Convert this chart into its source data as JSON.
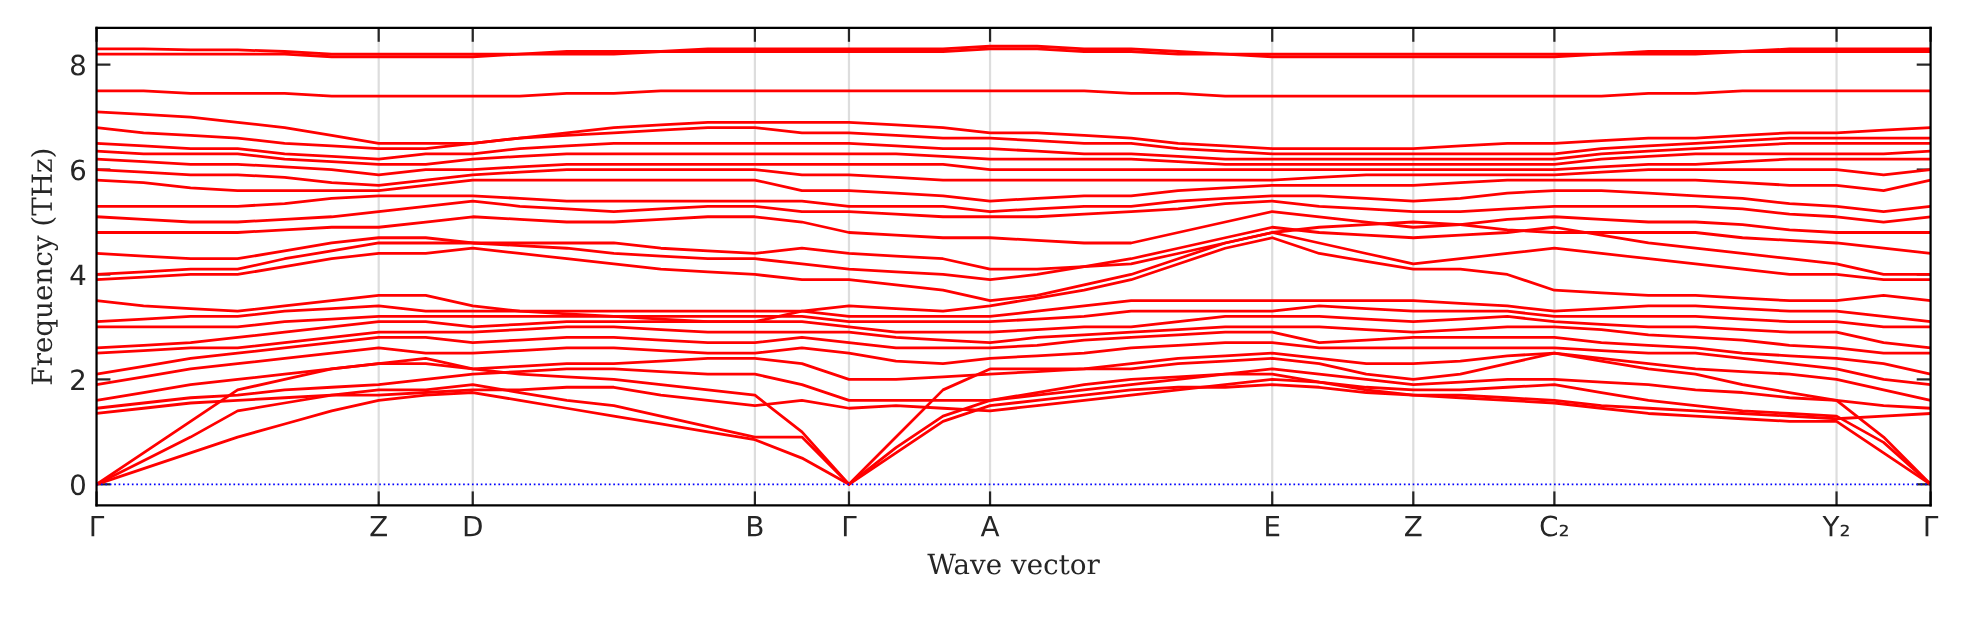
{
  "chart_data": {
    "type": "line",
    "xlabel": "Wave vector",
    "ylabel": "Frequency (THz)",
    "categories": [
      "Γ",
      null,
      null,
      null,
      null,
      null,
      "Z",
      null,
      "D",
      null,
      null,
      null,
      null,
      null,
      "B",
      null,
      "Γ",
      null,
      null,
      "A",
      null,
      null,
      null,
      null,
      null,
      "E",
      null,
      null,
      "Z",
      null,
      null,
      "C₂",
      null,
      null,
      null,
      null,
      null,
      "Y₂",
      null,
      "Γ"
    ],
    "ylim": [
      -0.4,
      8.7
    ],
    "yticks": [
      0,
      2,
      4,
      6,
      8
    ],
    "grid": "x",
    "marker": "none",
    "line_style": "solid",
    "ref_lines": [
      {
        "axis": "y",
        "value": 0,
        "color": "#0000ff",
        "line_style": "dotted"
      }
    ],
    "series": [
      {
        "color": "#ff0000",
        "values": [
          0,
          0.3,
          0.6,
          0.9,
          1.15,
          1.4,
          1.6,
          1.7,
          1.75,
          1.6,
          1.45,
          1.3,
          1.15,
          1.0,
          0.85,
          0.5,
          0,
          0.6,
          1.2,
          1.5,
          1.6,
          1.7,
          1.8,
          1.85,
          1.85,
          1.9,
          1.85,
          1.75,
          1.7,
          1.65,
          1.6,
          1.55,
          1.45,
          1.35,
          1.3,
          1.25,
          1.2,
          1.2,
          0.6,
          0
        ]
      },
      {
        "color": "#ff0000",
        "values": [
          0,
          0.45,
          0.9,
          1.4,
          1.55,
          1.7,
          1.8,
          1.8,
          1.9,
          1.75,
          1.6,
          1.5,
          1.3,
          1.1,
          0.9,
          0.9,
          0,
          0.7,
          1.3,
          1.6,
          1.75,
          1.9,
          2.0,
          2.05,
          2.1,
          2.1,
          1.95,
          1.85,
          1.8,
          1.8,
          1.85,
          1.9,
          1.75,
          1.6,
          1.5,
          1.4,
          1.35,
          1.3,
          0.8,
          0
        ]
      },
      {
        "color": "#ff0000",
        "values": [
          0,
          0.6,
          1.2,
          1.8,
          2.0,
          2.2,
          2.3,
          2.4,
          2.2,
          2.1,
          2.05,
          2.0,
          1.9,
          1.8,
          1.7,
          1.0,
          0,
          0.9,
          1.8,
          2.2,
          2.2,
          2.2,
          2.2,
          2.3,
          2.35,
          2.4,
          2.3,
          2.1,
          2.0,
          2.1,
          2.3,
          2.5,
          2.35,
          2.2,
          2.1,
          1.9,
          1.75,
          1.6,
          0.9,
          0
        ]
      },
      {
        "color": "#ff0000",
        "values": [
          1.35,
          1.45,
          1.55,
          1.6,
          1.65,
          1.7,
          1.7,
          1.75,
          1.8,
          1.8,
          1.85,
          1.85,
          1.7,
          1.6,
          1.5,
          1.6,
          1.45,
          1.5,
          1.45,
          1.4,
          1.5,
          1.6,
          1.7,
          1.8,
          1.9,
          2.0,
          1.95,
          1.8,
          1.7,
          1.7,
          1.65,
          1.6,
          1.5,
          1.45,
          1.4,
          1.35,
          1.3,
          1.25,
          1.3,
          1.35
        ]
      },
      {
        "color": "#ff0000",
        "values": [
          1.45,
          1.55,
          1.65,
          1.7,
          1.8,
          1.85,
          1.9,
          2.0,
          2.1,
          2.15,
          2.2,
          2.2,
          2.15,
          2.1,
          2.1,
          1.9,
          1.6,
          1.6,
          1.6,
          1.6,
          1.7,
          1.8,
          1.9,
          2.0,
          2.1,
          2.2,
          2.1,
          2.0,
          1.9,
          1.95,
          2.0,
          2.0,
          1.95,
          1.9,
          1.8,
          1.75,
          1.65,
          1.6,
          1.5,
          1.45
        ]
      },
      {
        "color": "#ff0000",
        "values": [
          1.6,
          1.75,
          1.9,
          2.0,
          2.1,
          2.2,
          2.3,
          2.3,
          2.2,
          2.25,
          2.3,
          2.3,
          2.35,
          2.4,
          2.4,
          2.3,
          2.0,
          2.0,
          2.05,
          2.1,
          2.15,
          2.2,
          2.3,
          2.4,
          2.45,
          2.5,
          2.4,
          2.3,
          2.3,
          2.35,
          2.45,
          2.5,
          2.4,
          2.3,
          2.2,
          2.15,
          2.1,
          2.0,
          1.8,
          1.6
        ]
      },
      {
        "color": "#ff0000",
        "values": [
          1.9,
          2.05,
          2.2,
          2.3,
          2.4,
          2.5,
          2.6,
          2.5,
          2.5,
          2.55,
          2.6,
          2.6,
          2.55,
          2.5,
          2.5,
          2.6,
          2.5,
          2.35,
          2.3,
          2.4,
          2.45,
          2.5,
          2.6,
          2.65,
          2.7,
          2.7,
          2.6,
          2.6,
          2.6,
          2.6,
          2.6,
          2.6,
          2.55,
          2.5,
          2.5,
          2.4,
          2.3,
          2.2,
          2.0,
          1.9
        ]
      },
      {
        "color": "#ff0000",
        "values": [
          2.1,
          2.25,
          2.4,
          2.5,
          2.6,
          2.7,
          2.8,
          2.8,
          2.7,
          2.75,
          2.8,
          2.8,
          2.75,
          2.7,
          2.7,
          2.8,
          2.7,
          2.6,
          2.6,
          2.6,
          2.65,
          2.75,
          2.8,
          2.85,
          2.9,
          2.9,
          2.7,
          2.75,
          2.8,
          2.8,
          2.8,
          2.8,
          2.7,
          2.65,
          2.6,
          2.5,
          2.45,
          2.4,
          2.3,
          2.1
        ]
      },
      {
        "color": "#ff0000",
        "values": [
          2.5,
          2.55,
          2.6,
          2.6,
          2.7,
          2.8,
          2.9,
          2.9,
          2.9,
          2.95,
          3.0,
          3.0,
          2.95,
          2.9,
          2.9,
          2.9,
          2.9,
          2.8,
          2.75,
          2.7,
          2.8,
          2.85,
          2.9,
          2.95,
          3.0,
          3.0,
          3.0,
          2.95,
          2.9,
          2.95,
          3.0,
          3.0,
          2.95,
          2.85,
          2.8,
          2.75,
          2.65,
          2.6,
          2.5,
          2.5
        ]
      },
      {
        "color": "#ff0000",
        "values": [
          2.6,
          2.65,
          2.7,
          2.8,
          2.9,
          3.0,
          3.1,
          3.1,
          3.0,
          3.05,
          3.1,
          3.1,
          3.1,
          3.1,
          3.1,
          3.1,
          3.0,
          2.9,
          2.9,
          2.9,
          2.95,
          3.0,
          3.0,
          3.1,
          3.2,
          3.2,
          3.2,
          3.15,
          3.1,
          3.15,
          3.2,
          3.1,
          3.05,
          3.0,
          3.0,
          2.95,
          2.9,
          2.9,
          2.7,
          2.6
        ]
      },
      {
        "color": "#ff0000",
        "values": [
          3.0,
          3.0,
          3.0,
          3.0,
          3.1,
          3.15,
          3.2,
          3.2,
          3.2,
          3.2,
          3.2,
          3.2,
          3.2,
          3.2,
          3.2,
          3.2,
          3.1,
          3.1,
          3.1,
          3.1,
          3.15,
          3.2,
          3.3,
          3.3,
          3.3,
          3.3,
          3.4,
          3.35,
          3.3,
          3.3,
          3.3,
          3.2,
          3.2,
          3.2,
          3.2,
          3.15,
          3.1,
          3.1,
          3.0,
          3.0
        ]
      },
      {
        "color": "#ff0000",
        "values": [
          3.1,
          3.15,
          3.2,
          3.2,
          3.3,
          3.35,
          3.4,
          3.3,
          3.3,
          3.3,
          3.3,
          3.3,
          3.3,
          3.3,
          3.3,
          3.3,
          3.2,
          3.2,
          3.2,
          3.2,
          3.3,
          3.4,
          3.5,
          3.5,
          3.5,
          3.5,
          3.5,
          3.5,
          3.5,
          3.45,
          3.4,
          3.3,
          3.35,
          3.4,
          3.4,
          3.35,
          3.3,
          3.3,
          3.2,
          3.1
        ]
      },
      {
        "color": "#ff0000",
        "values": [
          3.5,
          3.4,
          3.35,
          3.3,
          3.4,
          3.5,
          3.6,
          3.6,
          3.4,
          3.3,
          3.25,
          3.2,
          3.15,
          3.1,
          3.1,
          3.3,
          3.4,
          3.35,
          3.3,
          3.4,
          3.55,
          3.7,
          3.9,
          4.2,
          4.5,
          4.7,
          4.4,
          4.25,
          4.1,
          4.1,
          4.0,
          3.7,
          3.65,
          3.6,
          3.6,
          3.55,
          3.5,
          3.5,
          3.6,
          3.5
        ]
      },
      {
        "color": "#ff0000",
        "values": [
          3.9,
          3.95,
          4.0,
          4.0,
          4.15,
          4.3,
          4.4,
          4.4,
          4.5,
          4.4,
          4.3,
          4.2,
          4.1,
          4.05,
          4.0,
          3.9,
          3.9,
          3.8,
          3.7,
          3.5,
          3.6,
          3.8,
          4.0,
          4.3,
          4.6,
          4.8,
          4.6,
          4.4,
          4.2,
          4.3,
          4.4,
          4.5,
          4.4,
          4.3,
          4.2,
          4.1,
          4.0,
          4.0,
          3.9,
          3.9
        ]
      },
      {
        "color": "#ff0000",
        "values": [
          4.0,
          4.05,
          4.1,
          4.1,
          4.3,
          4.45,
          4.6,
          4.6,
          4.6,
          4.55,
          4.5,
          4.4,
          4.35,
          4.3,
          4.3,
          4.2,
          4.1,
          4.05,
          4.0,
          3.9,
          4.0,
          4.15,
          4.3,
          4.5,
          4.7,
          4.9,
          4.8,
          4.75,
          4.7,
          4.75,
          4.8,
          4.9,
          4.75,
          4.6,
          4.5,
          4.4,
          4.3,
          4.2,
          4.0,
          4.0
        ]
      },
      {
        "color": "#ff0000",
        "values": [
          4.4,
          4.35,
          4.3,
          4.3,
          4.45,
          4.6,
          4.7,
          4.7,
          4.6,
          4.6,
          4.6,
          4.6,
          4.5,
          4.45,
          4.4,
          4.5,
          4.4,
          4.35,
          4.3,
          4.1,
          4.1,
          4.15,
          4.2,
          4.4,
          4.6,
          4.8,
          4.9,
          4.95,
          5.0,
          4.95,
          4.85,
          4.8,
          4.8,
          4.8,
          4.8,
          4.7,
          4.65,
          4.6,
          4.5,
          4.4
        ]
      },
      {
        "color": "#ff0000",
        "values": [
          4.8,
          4.8,
          4.8,
          4.8,
          4.85,
          4.9,
          4.9,
          5.0,
          5.1,
          5.05,
          5.0,
          5.0,
          5.05,
          5.1,
          5.1,
          5.0,
          4.8,
          4.75,
          4.7,
          4.7,
          4.65,
          4.6,
          4.6,
          4.8,
          5.0,
          5.2,
          5.1,
          5.0,
          4.9,
          4.95,
          5.05,
          5.1,
          5.05,
          5.0,
          5.0,
          4.95,
          4.85,
          4.8,
          4.8,
          4.8
        ]
      },
      {
        "color": "#ff0000",
        "values": [
          5.1,
          5.05,
          5.0,
          5.0,
          5.05,
          5.1,
          5.2,
          5.3,
          5.4,
          5.3,
          5.25,
          5.2,
          5.25,
          5.3,
          5.3,
          5.2,
          5.2,
          5.15,
          5.1,
          5.1,
          5.1,
          5.15,
          5.2,
          5.25,
          5.35,
          5.4,
          5.3,
          5.25,
          5.2,
          5.2,
          5.25,
          5.3,
          5.3,
          5.3,
          5.3,
          5.25,
          5.15,
          5.1,
          5.0,
          5.1
        ]
      },
      {
        "color": "#ff0000",
        "values": [
          5.3,
          5.3,
          5.3,
          5.3,
          5.35,
          5.45,
          5.5,
          5.5,
          5.5,
          5.45,
          5.4,
          5.4,
          5.4,
          5.4,
          5.4,
          5.4,
          5.3,
          5.3,
          5.3,
          5.2,
          5.25,
          5.3,
          5.3,
          5.4,
          5.45,
          5.5,
          5.5,
          5.45,
          5.4,
          5.45,
          5.55,
          5.6,
          5.6,
          5.55,
          5.5,
          5.45,
          5.35,
          5.3,
          5.2,
          5.3
        ]
      },
      {
        "color": "#ff0000",
        "values": [
          5.8,
          5.75,
          5.65,
          5.6,
          5.6,
          5.6,
          5.6,
          5.7,
          5.8,
          5.8,
          5.8,
          5.8,
          5.8,
          5.8,
          5.8,
          5.6,
          5.6,
          5.55,
          5.5,
          5.4,
          5.45,
          5.5,
          5.5,
          5.6,
          5.65,
          5.7,
          5.7,
          5.7,
          5.7,
          5.75,
          5.8,
          5.8,
          5.8,
          5.8,
          5.8,
          5.75,
          5.7,
          5.7,
          5.6,
          5.8
        ]
      },
      {
        "color": "#ff0000",
        "values": [
          6.0,
          5.95,
          5.9,
          5.9,
          5.85,
          5.75,
          5.7,
          5.8,
          5.9,
          5.95,
          6.0,
          6.0,
          6.0,
          6.0,
          6.0,
          5.9,
          5.9,
          5.85,
          5.8,
          5.8,
          5.8,
          5.8,
          5.8,
          5.8,
          5.8,
          5.8,
          5.85,
          5.9,
          5.9,
          5.9,
          5.9,
          5.9,
          5.95,
          6.0,
          6.0,
          6.0,
          6.0,
          6.0,
          5.9,
          6.0
        ]
      },
      {
        "color": "#ff0000",
        "values": [
          6.2,
          6.15,
          6.1,
          6.1,
          6.05,
          6.0,
          5.9,
          6.0,
          6.0,
          6.05,
          6.1,
          6.1,
          6.1,
          6.1,
          6.1,
          6.1,
          6.1,
          6.1,
          6.1,
          6.0,
          6.0,
          6.0,
          6.0,
          6.0,
          6.0,
          6.0,
          6.0,
          6.0,
          6.0,
          6.0,
          6.0,
          6.0,
          6.05,
          6.1,
          6.1,
          6.15,
          6.2,
          6.2,
          6.2,
          6.2
        ]
      },
      {
        "color": "#ff0000",
        "values": [
          6.35,
          6.3,
          6.3,
          6.3,
          6.2,
          6.15,
          6.1,
          6.1,
          6.2,
          6.25,
          6.3,
          6.3,
          6.3,
          6.3,
          6.3,
          6.3,
          6.3,
          6.3,
          6.25,
          6.2,
          6.2,
          6.2,
          6.2,
          6.15,
          6.1,
          6.1,
          6.1,
          6.1,
          6.1,
          6.1,
          6.1,
          6.1,
          6.2,
          6.25,
          6.3,
          6.3,
          6.3,
          6.3,
          6.3,
          6.35
        ]
      },
      {
        "color": "#ff0000",
        "values": [
          6.5,
          6.45,
          6.4,
          6.4,
          6.3,
          6.25,
          6.2,
          6.3,
          6.3,
          6.4,
          6.45,
          6.5,
          6.5,
          6.5,
          6.5,
          6.5,
          6.5,
          6.45,
          6.4,
          6.4,
          6.35,
          6.3,
          6.3,
          6.25,
          6.2,
          6.2,
          6.2,
          6.2,
          6.2,
          6.2,
          6.2,
          6.2,
          6.3,
          6.35,
          6.4,
          6.45,
          6.5,
          6.5,
          6.5,
          6.5
        ]
      },
      {
        "color": "#ff0000",
        "values": [
          6.8,
          6.7,
          6.65,
          6.6,
          6.5,
          6.45,
          6.4,
          6.4,
          6.5,
          6.6,
          6.65,
          6.7,
          6.75,
          6.8,
          6.8,
          6.7,
          6.7,
          6.65,
          6.6,
          6.6,
          6.55,
          6.5,
          6.5,
          6.4,
          6.35,
          6.3,
          6.3,
          6.3,
          6.3,
          6.3,
          6.3,
          6.3,
          6.4,
          6.45,
          6.5,
          6.55,
          6.6,
          6.6,
          6.6,
          6.6
        ]
      },
      {
        "color": "#ff0000",
        "values": [
          7.1,
          7.05,
          7.0,
          6.9,
          6.8,
          6.65,
          6.5,
          6.5,
          6.5,
          6.6,
          6.7,
          6.8,
          6.85,
          6.9,
          6.9,
          6.9,
          6.9,
          6.85,
          6.8,
          6.7,
          6.7,
          6.65,
          6.6,
          6.5,
          6.45,
          6.4,
          6.4,
          6.4,
          6.4,
          6.45,
          6.5,
          6.5,
          6.55,
          6.6,
          6.6,
          6.65,
          6.7,
          6.7,
          6.75,
          6.8
        ]
      },
      {
        "color": "#ff0000",
        "values": [
          7.5,
          7.5,
          7.45,
          7.45,
          7.45,
          7.4,
          7.4,
          7.4,
          7.4,
          7.4,
          7.45,
          7.45,
          7.5,
          7.5,
          7.5,
          7.5,
          7.5,
          7.5,
          7.5,
          7.5,
          7.5,
          7.5,
          7.45,
          7.45,
          7.4,
          7.4,
          7.4,
          7.4,
          7.4,
          7.4,
          7.4,
          7.4,
          7.4,
          7.45,
          7.45,
          7.5,
          7.5,
          7.5,
          7.5,
          7.5
        ]
      },
      {
        "color": "#ff0000",
        "values": [
          8.2,
          8.2,
          8.2,
          8.2,
          8.2,
          8.15,
          8.15,
          8.15,
          8.15,
          8.2,
          8.2,
          8.2,
          8.25,
          8.25,
          8.25,
          8.25,
          8.25,
          8.25,
          8.25,
          8.3,
          8.3,
          8.25,
          8.25,
          8.2,
          8.2,
          8.15,
          8.15,
          8.15,
          8.15,
          8.15,
          8.15,
          8.15,
          8.2,
          8.2,
          8.2,
          8.25,
          8.25,
          8.25,
          8.25,
          8.25
        ]
      },
      {
        "color": "#ff0000",
        "values": [
          8.3,
          8.3,
          8.28,
          8.28,
          8.25,
          8.2,
          8.2,
          8.2,
          8.2,
          8.2,
          8.25,
          8.25,
          8.25,
          8.3,
          8.3,
          8.3,
          8.3,
          8.3,
          8.3,
          8.35,
          8.35,
          8.3,
          8.3,
          8.25,
          8.2,
          8.2,
          8.2,
          8.2,
          8.2,
          8.2,
          8.2,
          8.2,
          8.2,
          8.25,
          8.25,
          8.25,
          8.3,
          8.3,
          8.3,
          8.3
        ]
      }
    ]
  }
}
